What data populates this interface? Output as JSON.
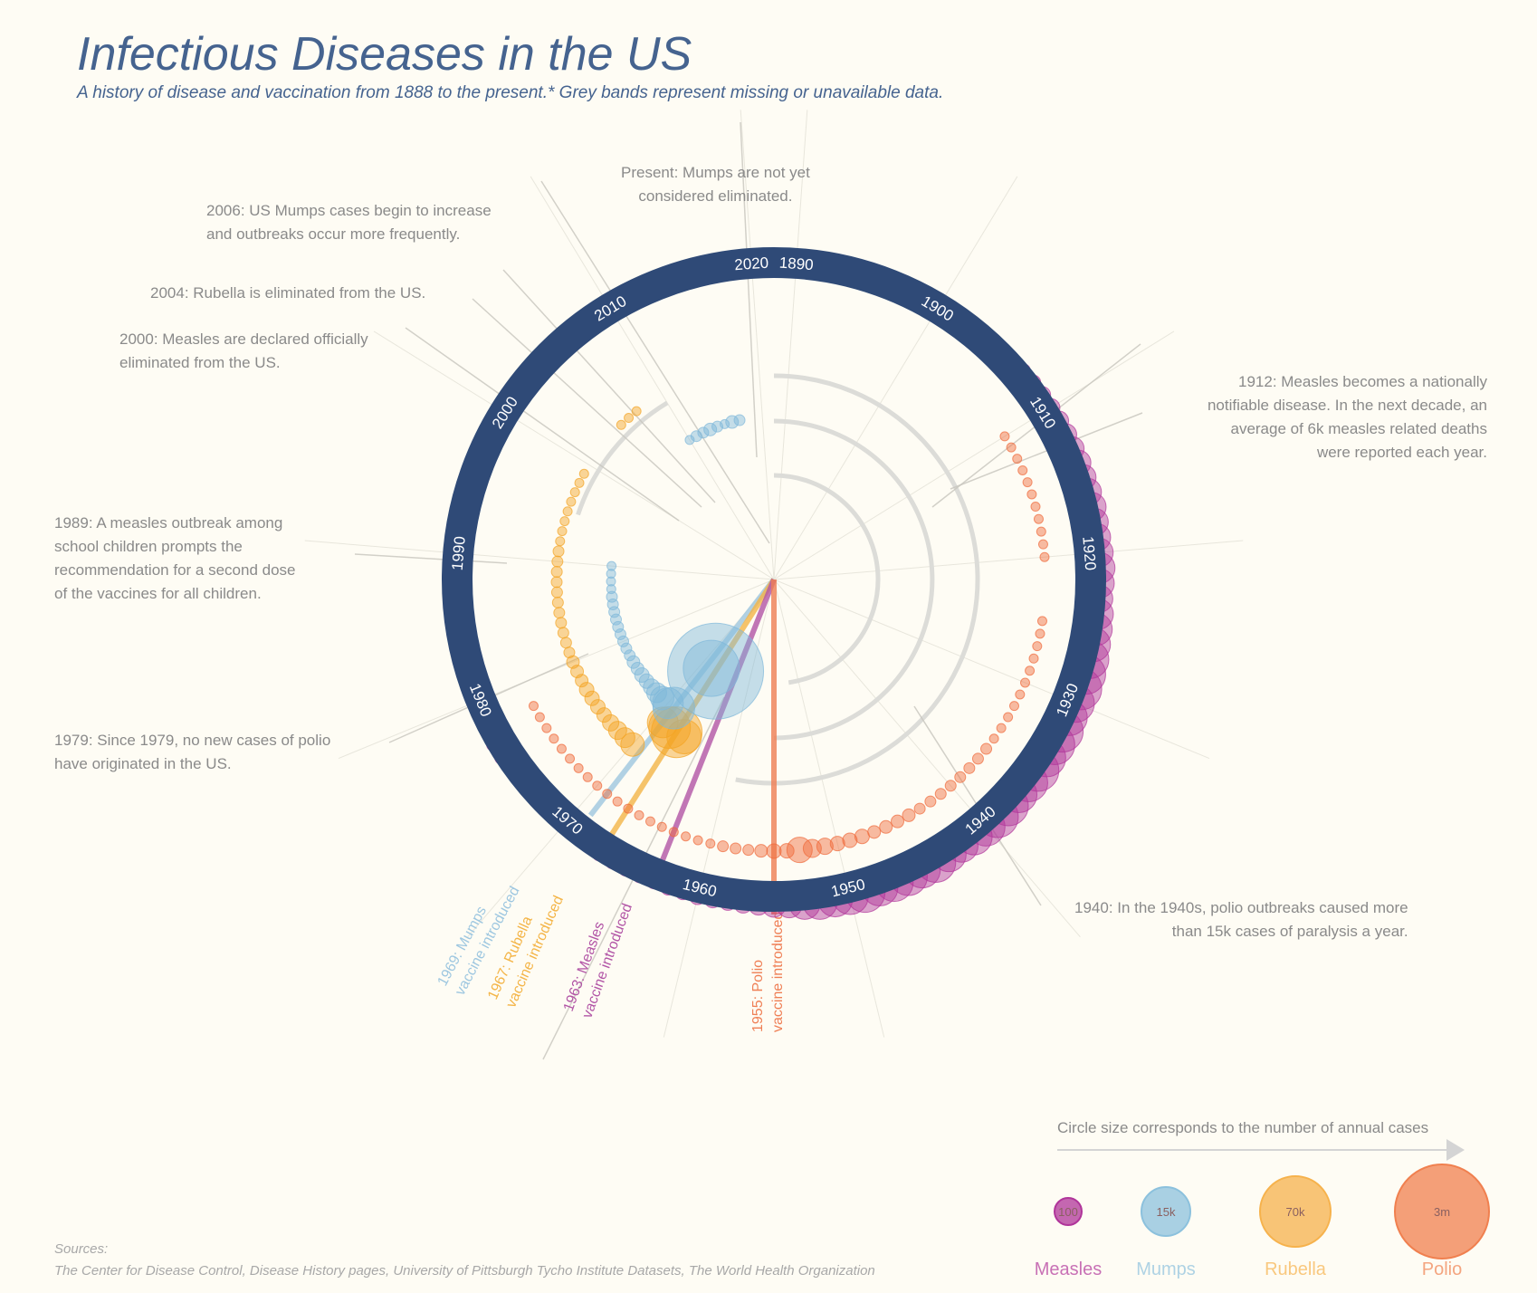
{
  "header": {
    "title": "Infectious Diseases in the US",
    "subtitle": "A history of disease and vaccination from 1888 to the present.* Grey bands represent missing or unavailable data."
  },
  "annotations": {
    "present": [
      "Present: Mumps are not yet",
      "considered eliminated."
    ],
    "y2006": [
      "2006: US Mumps cases begin to increase",
      "and outbreaks occur more frequently."
    ],
    "y2004": [
      "2004: Rubella is eliminated from the US."
    ],
    "y2000": [
      "2000: Measles are declared officially",
      "eliminated from the US."
    ],
    "y1989": [
      "1989: A measles outbreak among",
      "school children prompts the",
      "recommendation for a second dose",
      "of the vaccines for all children."
    ],
    "y1979": [
      "1979: Since 1979, no new cases of polio",
      "have originated in the US."
    ],
    "y1912": [
      "1912: Measles becomes a nationally",
      "notifiable disease. In the next decade, an",
      "average of 6k measles related deaths",
      "were reported each year."
    ],
    "y1940": [
      "1940: In the 1940s, polio outbreaks caused more",
      "than 15k cases of paralysis a year."
    ]
  },
  "vaccines": [
    {
      "line1": "1969: Mumps",
      "line2": "vaccine introduced",
      "color": "#9ec7e0"
    },
    {
      "line1": "1967: Rubella",
      "line2": "vaccine introduced",
      "color": "#f4b548"
    },
    {
      "line1": "1963: Measles",
      "line2": "vaccine introduced",
      "color": "#b255a6"
    },
    {
      "line1": "1955: Polio",
      "line2": "vaccine introduced",
      "color": "#ef7f55"
    }
  ],
  "year_ring_labels": [
    "2020",
    "1890",
    "1900",
    "1910",
    "1920",
    "1930",
    "1940",
    "1950",
    "1960",
    "1970",
    "1980",
    "1990",
    "2000",
    "2010"
  ],
  "legend": {
    "caption": "Circle size corresponds to the number of annual cases",
    "items": [
      {
        "name": "Measles",
        "value": "100",
        "color": "#b0359a"
      },
      {
        "name": "Mumps",
        "value": "15k",
        "color": "#8cc1dd"
      },
      {
        "name": "Rubella",
        "value": "70k",
        "color": "#f6b24c"
      },
      {
        "name": "Polio",
        "value": "3m",
        "color": "#f0804f"
      }
    ]
  },
  "sources": {
    "label": "Sources:",
    "text": "The Center for Disease Control, Disease History pages, University of Pittsburgh Tycho Institute Datasets, The World Health Organization"
  },
  "chart_data": {
    "type": "radial-bubble-timeline",
    "year_range": [
      1888,
      2022
    ],
    "series": [
      {
        "name": "Measles",
        "color": "#b0359a",
        "start": 1888,
        "values": [
          2,
          2,
          2,
          2,
          2,
          2,
          2,
          2,
          2,
          2,
          2,
          2,
          2,
          2,
          2,
          2,
          2,
          3,
          3,
          4,
          5,
          6,
          7,
          8,
          9,
          10,
          11,
          11,
          12,
          13,
          12,
          12,
          13,
          14,
          13,
          12,
          14,
          15,
          16,
          18,
          19,
          20,
          18,
          17,
          20,
          19,
          18,
          20,
          18,
          17,
          19,
          20,
          18,
          17,
          15,
          16,
          19,
          17,
          18,
          18,
          17,
          19,
          17,
          16,
          16,
          14,
          11,
          10,
          8,
          7,
          6,
          6,
          6,
          5,
          5,
          4,
          4,
          4,
          4,
          4,
          3,
          3,
          3,
          3,
          3,
          3,
          3,
          3,
          4,
          4,
          3,
          2,
          2,
          2,
          2,
          2,
          2,
          2,
          2,
          2,
          2,
          2,
          2,
          2,
          2,
          2,
          2,
          2,
          2,
          2,
          2,
          2,
          2,
          2,
          2,
          2,
          2,
          2,
          2,
          2,
          2,
          2,
          2,
          2,
          2,
          2,
          2,
          2,
          2,
          2,
          2,
          2,
          2,
          2,
          2
        ]
      },
      {
        "name": "Polio",
        "color": "#ef6a3a",
        "segments": [
          {
            "start": 1910,
            "values": [
              2,
              2,
              2,
              2,
              2,
              2,
              2,
              2,
              2,
              2,
              2
            ]
          },
          {
            "start": 1925,
            "values": [
              2,
              2,
              2,
              2,
              2,
              2,
              2,
              2,
              2,
              2,
              2,
              3,
              3,
              3,
              3,
              3,
              3,
              3,
              3,
              4,
              4,
              4,
              4,
              5,
              5,
              5,
              6,
              7,
              11,
              5,
              5,
              4,
              3,
              3,
              3,
              2,
              2,
              2,
              2,
              2,
              2,
              2,
              2,
              2,
              2,
              2,
              2,
              2,
              2,
              2,
              2,
              2,
              2,
              2
            ]
          }
        ]
      },
      {
        "name": "Rubella",
        "color": "#f3a424",
        "segments": [
          {
            "start": 1966,
            "values": [
              16,
              25,
              20,
              14,
              10,
              8,
              7,
              6,
              5,
              5,
              5,
              5,
              4,
              4,
              4,
              3,
              3,
              3,
              3,
              3,
              3,
              3,
              3,
              3,
              3,
              3,
              2,
              2,
              2,
              2,
              2,
              2,
              2,
              2
            ]
          },
          {
            "start": 2005,
            "values": [
              2,
              2,
              2
            ]
          }
        ]
      },
      {
        "name": "Mumps",
        "color": "#7fb8da",
        "segments": [
          {
            "start": 1967,
            "values": [
              50,
              28,
              20,
              14,
              10,
              8,
              6,
              5,
              5,
              4,
              4,
              3,
              3,
              3,
              3,
              3,
              3,
              3,
              3,
              3,
              2,
              2,
              2,
              2
            ]
          },
          {
            "start": 2010,
            "values": [
              2,
              3,
              3,
              4,
              3,
              2,
              4,
              3
            ]
          }
        ]
      }
    ],
    "vaccine_years": {
      "Polio": 1955,
      "Measles": 1963,
      "Rubella": 1967,
      "Mumps": 1969
    }
  }
}
